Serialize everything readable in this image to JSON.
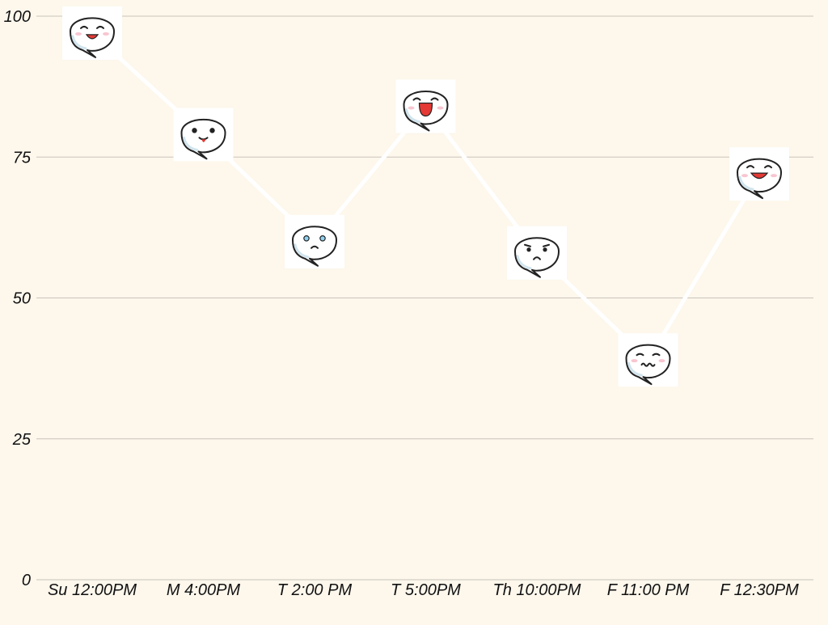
{
  "colors": {
    "background": "#fdf7ec",
    "grid": "#c9c4bb",
    "line": "#ffffff",
    "marker_bg": "#ffffff",
    "bubble_stroke": "#222222",
    "mouth": "#e53935",
    "blush": "#f6b6c4",
    "tear": "#8fd3f4"
  },
  "chart_data": {
    "type": "line",
    "title": "",
    "xlabel": "",
    "ylabel": "",
    "categories": [
      "Su 12:00PM",
      "M 4:00PM",
      "T 2:00 PM",
      "T 5:00PM",
      "Th 10:00PM",
      "F 11:00 PM",
      "F 12:30PM"
    ],
    "series": [
      {
        "values": [
          97,
          79,
          60,
          84,
          58,
          39,
          72
        ],
        "markers": [
          "laughing-speech-bubble-icon",
          "tongue-out-speech-bubble-icon",
          "sad-teary-speech-bubble-icon",
          "open-mouth-happy-speech-bubble-icon",
          "frowning-speech-bubble-icon",
          "upset-squiggle-mouth-speech-bubble-icon",
          "grinning-speech-bubble-icon"
        ]
      }
    ],
    "ylim": [
      0,
      100
    ],
    "yticks": [
      0,
      25,
      50,
      75,
      100
    ],
    "grid": true,
    "legend": "none"
  }
}
